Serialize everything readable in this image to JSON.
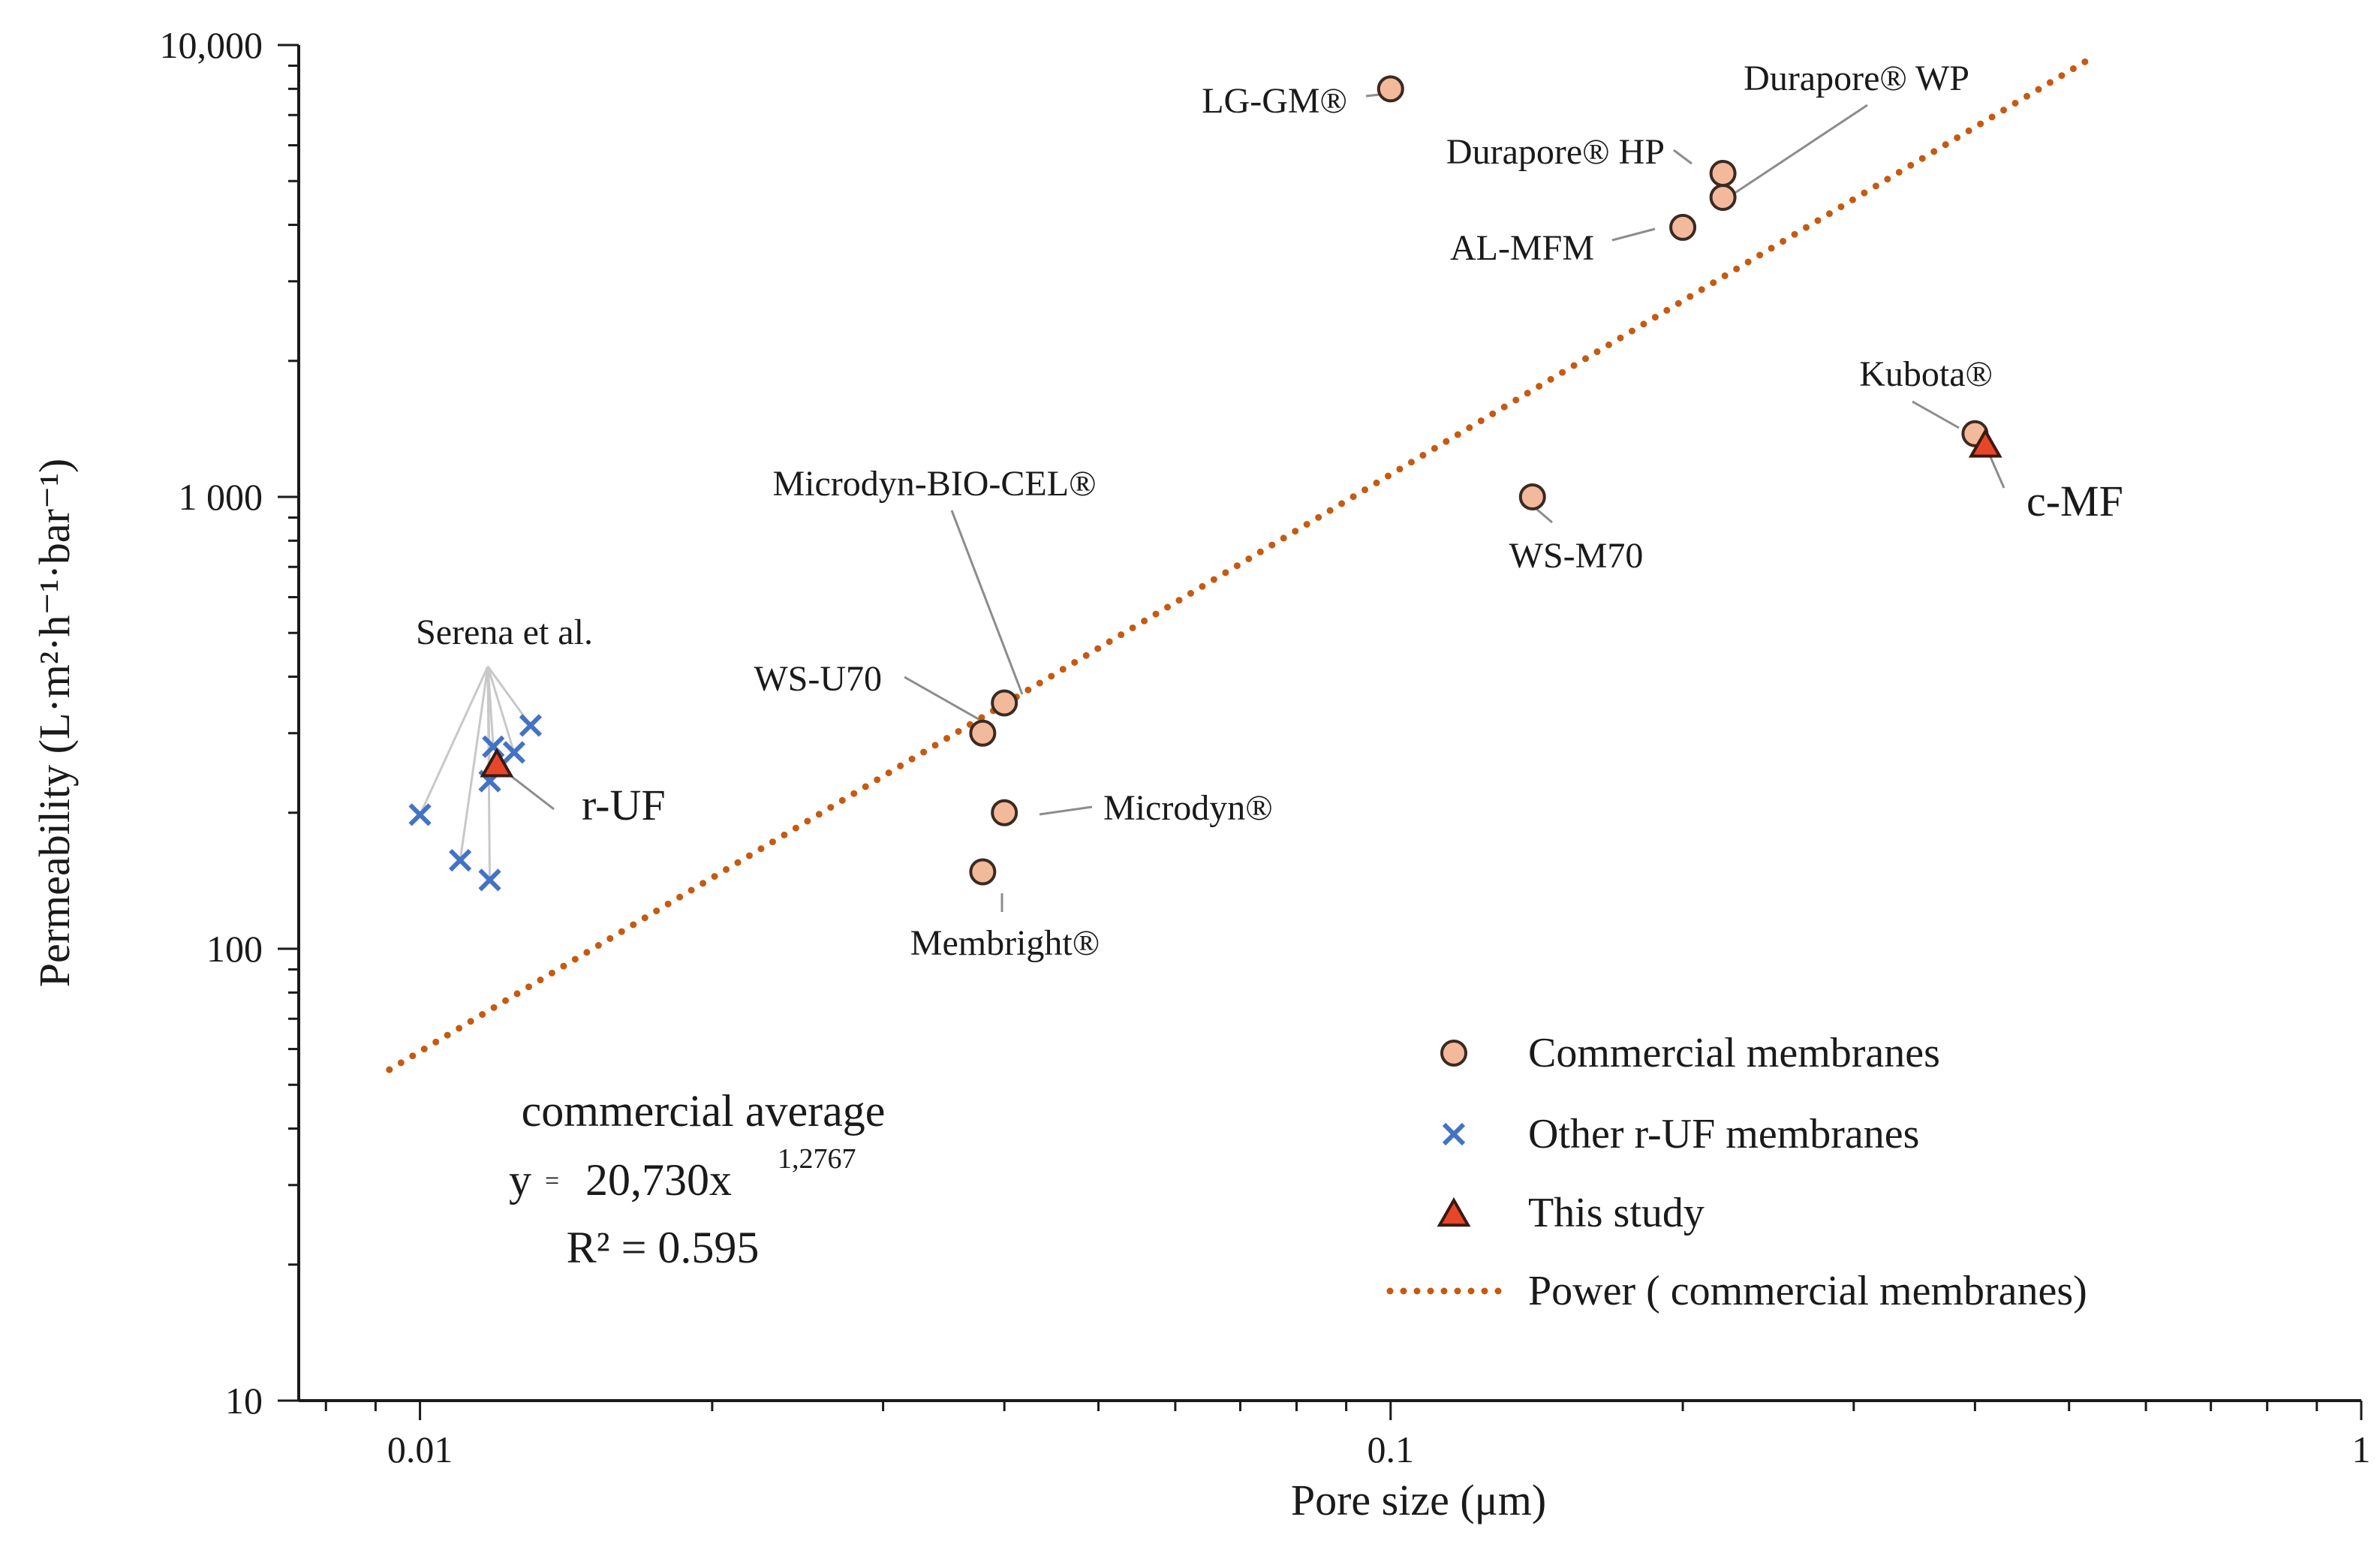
{
  "chart_data": {
    "type": "scatter",
    "xscale": "log",
    "yscale": "log",
    "xlim": [
      0.0075,
      1
    ],
    "ylim": [
      10,
      10000
    ],
    "xlabel": "Pore size (μm)",
    "ylabel": "Permeability (L·m²·h⁻¹·bar⁻¹)",
    "x_ticks": [
      {
        "value": 0.01,
        "label": "0.01"
      },
      {
        "value": 0.1,
        "label": "0.1"
      },
      {
        "value": 1,
        "label": "1"
      }
    ],
    "y_ticks": [
      {
        "value": 10,
        "label": "10"
      },
      {
        "value": 100,
        "label": "100"
      },
      {
        "value": 1000,
        "label": "1 000"
      },
      {
        "value": 10000,
        "label": "10,000"
      }
    ],
    "series": [
      {
        "name": "Commercial membranes",
        "marker": "circle",
        "color": "#f2b99a",
        "points": [
          {
            "x": 0.1,
            "y": 8000,
            "label": "LG-GM®"
          },
          {
            "x": 0.22,
            "y": 5200,
            "label": "Durapore® HP"
          },
          {
            "x": 0.22,
            "y": 4600,
            "label": "Durapore® WP"
          },
          {
            "x": 0.2,
            "y": 3950,
            "label": "AL-MFM"
          },
          {
            "x": 0.4,
            "y": 1380,
            "label": "Kubota®"
          },
          {
            "x": 0.14,
            "y": 1000,
            "label": "WS-M70"
          },
          {
            "x": 0.04,
            "y": 350,
            "label": "Microdyn-BIO-CEL®"
          },
          {
            "x": 0.038,
            "y": 300,
            "label": "WS-U70"
          },
          {
            "x": 0.04,
            "y": 200,
            "label": "Microdyn®"
          },
          {
            "x": 0.038,
            "y": 148,
            "label": "Membright®"
          }
        ]
      },
      {
        "name": "Other r-UF membranes",
        "marker": "x",
        "color": "#4472c4",
        "points": [
          {
            "x": 0.01,
            "y": 198
          },
          {
            "x": 0.011,
            "y": 157
          },
          {
            "x": 0.0118,
            "y": 142
          },
          {
            "x": 0.0118,
            "y": 235
          },
          {
            "x": 0.0119,
            "y": 280
          },
          {
            "x": 0.0125,
            "y": 272
          },
          {
            "x": 0.013,
            "y": 312
          }
        ]
      },
      {
        "name": "This study",
        "marker": "triangle",
        "color": "#e8462a",
        "points": [
          {
            "x": 0.012,
            "y": 255,
            "label": "r-UF"
          },
          {
            "x": 0.41,
            "y": 1300,
            "label": "c-MF"
          }
        ]
      }
    ],
    "trendline": {
      "name": "Power ( commercial membranes)",
      "type": "power",
      "color": "#c55a11",
      "x_range": [
        0.0093,
        0.52
      ],
      "points": [
        {
          "x": 0.0093,
          "y": 54
        },
        {
          "x": 0.52,
          "y": 9200
        }
      ]
    },
    "annotations": {
      "serena": "Serena et al.",
      "eq_title": "commercial average",
      "eq_prefix": "y",
      "eq_equals": "=",
      "eq_base": "20,730x",
      "eq_exponent": "1,2767",
      "eq_r2": "R² = 0.595"
    },
    "legend": {
      "position": "bottom-right",
      "entries": [
        "Commercial membranes",
        "Other r-UF membranes",
        "This study",
        "Power ( commercial membranes)"
      ]
    }
  }
}
